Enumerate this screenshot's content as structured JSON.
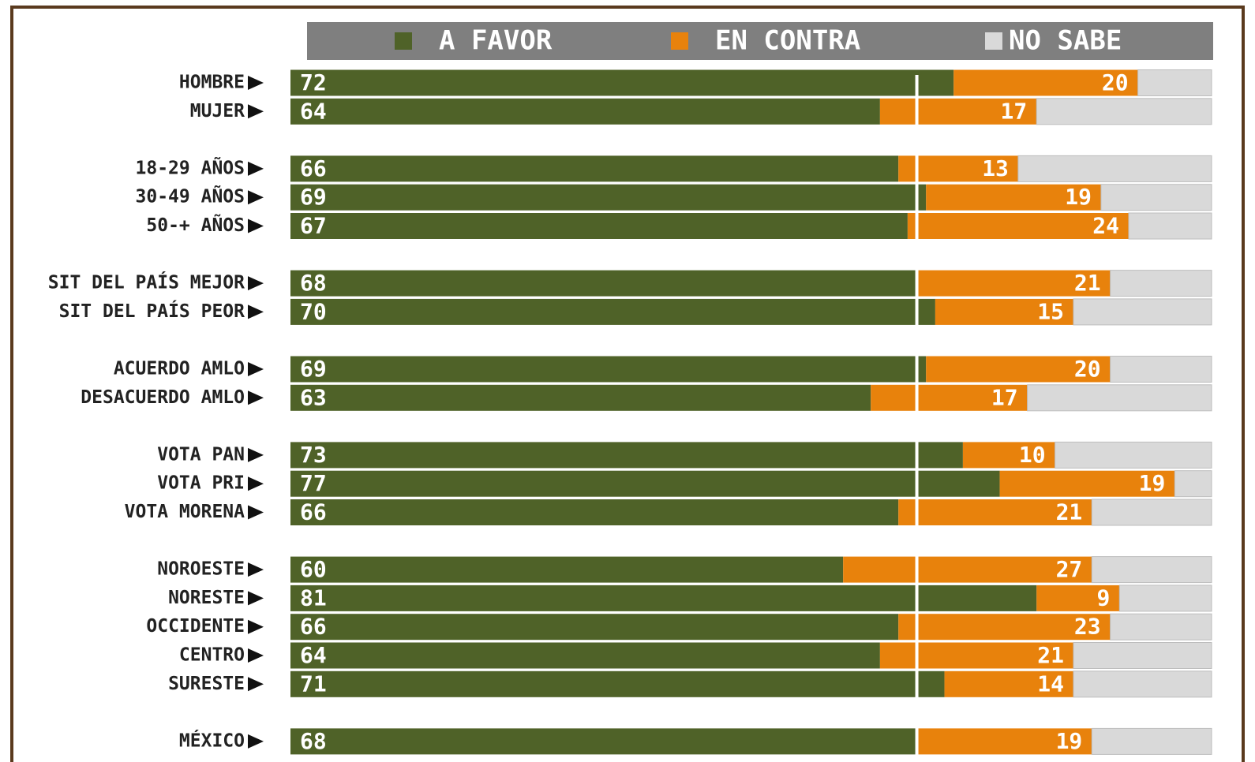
{
  "chart_data": {
    "type": "stacked-bar-horizontal",
    "categories": [
      "HOMBRE",
      "MUJER",
      null,
      "18-29 AÑOS",
      "30-49 AÑOS",
      "50-+ AÑOS",
      null,
      "SIT DEL PAÍS MEJOR",
      "SIT DEL PAÍS PEOR",
      null,
      "ACUERDO AMLO",
      "DESACUERDO AMLO",
      null,
      "VOTA PAN",
      "VOTA PRI",
      "VOTA MORENA",
      null,
      "NOROESTE",
      "NORESTE",
      "OCCIDENTE",
      "CENTRO",
      "SURESTE",
      null,
      "MÉXICO"
    ],
    "series": [
      {
        "name": "A FAVOR",
        "color": "#4f6228",
        "values": [
          72,
          64,
          null,
          66,
          69,
          67,
          null,
          68,
          70,
          null,
          69,
          63,
          null,
          73,
          77,
          66,
          null,
          60,
          81,
          66,
          64,
          71,
          null,
          68
        ]
      },
      {
        "name": "EN CONTRA",
        "color": "#e8820c",
        "values": [
          20,
          17,
          null,
          13,
          19,
          24,
          null,
          21,
          15,
          null,
          20,
          17,
          null,
          10,
          19,
          21,
          null,
          27,
          9,
          23,
          21,
          14,
          null,
          19
        ]
      },
      {
        "name": "NO SABE",
        "color": "#d9d9d9",
        "values": [
          8,
          19,
          null,
          21,
          12,
          9,
          null,
          11,
          15,
          null,
          11,
          20,
          null,
          17,
          4,
          13,
          null,
          13,
          10,
          11,
          15,
          15,
          null,
          13
        ]
      }
    ],
    "xlim": [
      0,
      100
    ]
  }
}
